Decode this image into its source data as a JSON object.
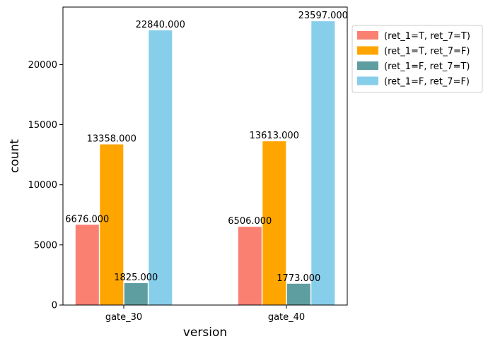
{
  "chart_data": {
    "type": "bar",
    "xlabel": "version",
    "ylabel": "count",
    "categories": [
      "gate_30",
      "gate_40"
    ],
    "series": [
      {
        "name": "(ret_1=T, ret_7=T)",
        "color": "#fa8072",
        "values": [
          6676.0,
          6506.0
        ],
        "labels": [
          "6676.000",
          "6506.000"
        ]
      },
      {
        "name": "(ret_1=T, ret_7=F)",
        "color": "#ffa500",
        "values": [
          13358.0,
          13613.0
        ],
        "labels": [
          "13358.000",
          "13613.000"
        ]
      },
      {
        "name": "(ret_1=F, ret_7=T)",
        "color": "#5f9ea0",
        "values": [
          1825.0,
          1773.0
        ],
        "labels": [
          "1825.000",
          "1773.000"
        ]
      },
      {
        "name": "(ret_1=F, ret_7=F)",
        "color": "#87ceeb",
        "values": [
          22840.0,
          23597.0
        ],
        "labels": [
          "22840.000",
          "23597.000"
        ]
      }
    ],
    "yticks": [
      0,
      5000,
      10000,
      15000,
      20000
    ],
    "ylim": [
      0,
      24777
    ],
    "grid": false,
    "legend_position": "outside-top-right"
  }
}
